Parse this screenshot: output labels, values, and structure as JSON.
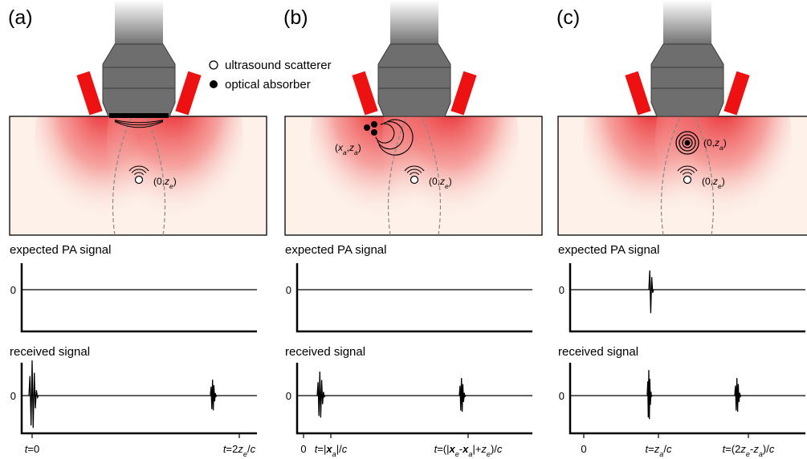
{
  "legend": {
    "scatterer": "ultrasound scatterer",
    "absorber": "optical absorber"
  },
  "panels": [
    {
      "label": "(a)",
      "expected_title": "expected PA signal",
      "received_title": "received signal",
      "expected_zero": "0",
      "received_zero": "0",
      "scatterer_label": [
        {
          "text": "(0,",
          "style": "normal"
        },
        {
          "text": "z",
          "style": "italic"
        },
        {
          "text": "e",
          "style": "italic-sub"
        },
        {
          "text": ")",
          "style": "normal"
        }
      ],
      "x_labels": [
        [
          {
            "text": "t",
            "style": "italic"
          },
          {
            "text": "=0",
            "style": "normal"
          }
        ],
        [
          {
            "text": "t",
            "style": "italic"
          },
          {
            "text": "=2",
            "style": "normal"
          },
          {
            "text": "z",
            "style": "italic"
          },
          {
            "text": "e",
            "style": "italic-sub"
          },
          {
            "text": "/",
            "style": "normal"
          },
          {
            "text": "c",
            "style": "italic"
          }
        ]
      ]
    },
    {
      "label": "(b)",
      "expected_title": "expected PA signal",
      "received_title": "received signal",
      "expected_zero": "0",
      "received_zero": "0",
      "scatterer_label": [
        {
          "text": "(0,",
          "style": "normal"
        },
        {
          "text": "z",
          "style": "italic"
        },
        {
          "text": "e",
          "style": "italic-sub"
        },
        {
          "text": ")",
          "style": "normal"
        }
      ],
      "absorber_label": [
        {
          "text": "(",
          "style": "normal"
        },
        {
          "text": "x",
          "style": "italic"
        },
        {
          "text": "a",
          "style": "italic-sub"
        },
        {
          "text": ",",
          "style": "normal"
        },
        {
          "text": "z",
          "style": "italic"
        },
        {
          "text": "a",
          "style": "italic-sub"
        },
        {
          "text": ")",
          "style": "normal"
        }
      ],
      "x_labels": [
        [
          {
            "text": "0",
            "style": "normal"
          }
        ],
        [
          {
            "text": "t",
            "style": "italic"
          },
          {
            "text": "=|",
            "style": "normal"
          },
          {
            "text": "x",
            "style": "bold-italic"
          },
          {
            "text": "a",
            "style": "italic-sub"
          },
          {
            "text": "|/",
            "style": "normal"
          },
          {
            "text": "c",
            "style": "italic"
          }
        ],
        [
          {
            "text": "t",
            "style": "italic"
          },
          {
            "text": "=(|",
            "style": "normal"
          },
          {
            "text": "x",
            "style": "bold-italic"
          },
          {
            "text": "e",
            "style": "italic-sub"
          },
          {
            "text": "-",
            "style": "normal"
          },
          {
            "text": "x",
            "style": "bold-italic"
          },
          {
            "text": "a",
            "style": "italic-sub"
          },
          {
            "text": "|+",
            "style": "normal"
          },
          {
            "text": "z",
            "style": "italic"
          },
          {
            "text": "e",
            "style": "italic-sub"
          },
          {
            "text": ")/",
            "style": "normal"
          },
          {
            "text": "c",
            "style": "italic"
          }
        ]
      ]
    },
    {
      "label": "(c)",
      "expected_title": "expected PA signal",
      "received_title": "received signal",
      "expected_zero": "0",
      "received_zero": "0",
      "scatterer_label": [
        {
          "text": "(0,",
          "style": "normal"
        },
        {
          "text": "z",
          "style": "italic"
        },
        {
          "text": "e",
          "style": "italic-sub"
        },
        {
          "text": ")",
          "style": "normal"
        }
      ],
      "absorber_label": [
        {
          "text": "(0,",
          "style": "normal"
        },
        {
          "text": "z",
          "style": "italic"
        },
        {
          "text": "a",
          "style": "italic-sub"
        },
        {
          "text": ")",
          "style": "normal"
        }
      ],
      "x_labels": [
        [
          {
            "text": "0",
            "style": "normal"
          }
        ],
        [
          {
            "text": "t",
            "style": "italic"
          },
          {
            "text": "=",
            "style": "normal"
          },
          {
            "text": "z",
            "style": "italic"
          },
          {
            "text": "a",
            "style": "italic-sub"
          },
          {
            "text": "/",
            "style": "normal"
          },
          {
            "text": "c",
            "style": "italic"
          }
        ],
        [
          {
            "text": "t",
            "style": "italic"
          },
          {
            "text": "=(2",
            "style": "normal"
          },
          {
            "text": "z",
            "style": "italic"
          },
          {
            "text": "e",
            "style": "italic-sub"
          },
          {
            "text": "-",
            "style": "normal"
          },
          {
            "text": "z",
            "style": "italic"
          },
          {
            "text": "a",
            "style": "italic-sub"
          },
          {
            "text": ")/",
            "style": "normal"
          },
          {
            "text": "c",
            "style": "italic"
          }
        ]
      ]
    }
  ]
}
